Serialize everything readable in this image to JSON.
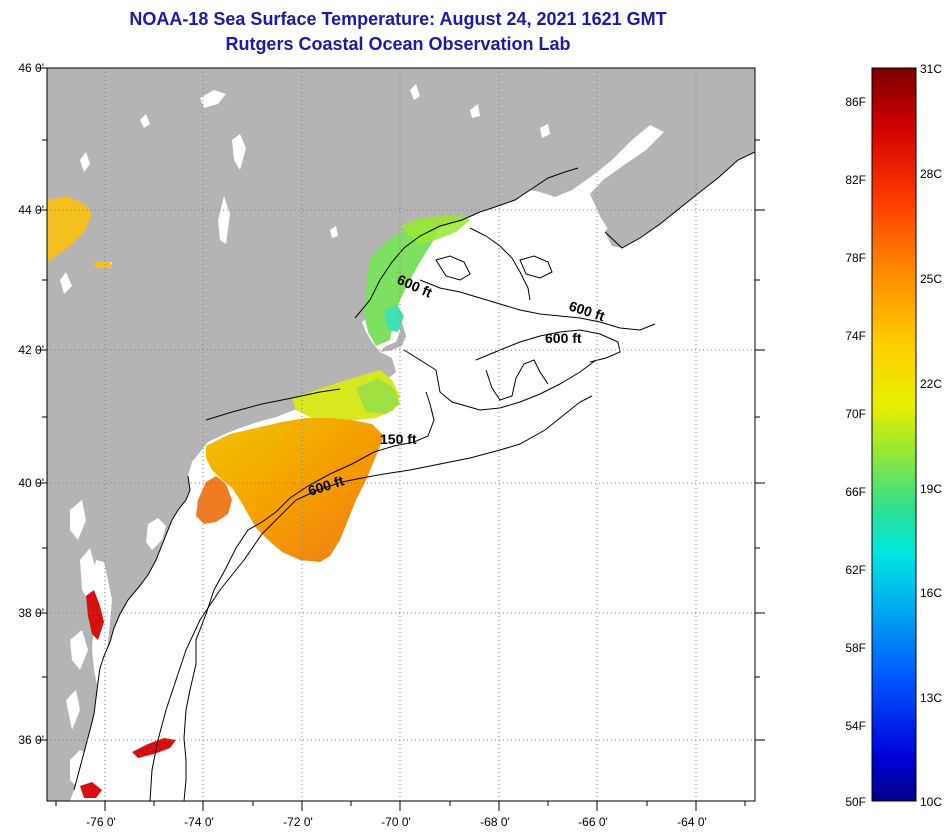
{
  "header": {
    "title": "NOAA-18 Sea Surface Temperature:  August 24, 2021 1621 GMT",
    "subtitle": "Rutgers Coastal Ocean Observation Lab"
  },
  "map": {
    "lat_labels": [
      "46 0'",
      "44 0'",
      "42 0'",
      "40 0'",
      "38 0'",
      "36 0'"
    ],
    "lon_labels": [
      "-76 0'",
      "-74 0'",
      "-72 0'",
      "-70 0'",
      "-68 0'",
      "-66 0'",
      "-64 0'"
    ],
    "contour_labels": [
      "600 ft",
      "600 ft",
      "600 ft",
      "150 ft",
      "600 ft"
    ],
    "colors": {
      "land": "#b4b4b4",
      "ocean": "#ffffff",
      "coast": "#000000",
      "title": "#1a1aa6"
    }
  },
  "colorbar": {
    "fahrenheit": [
      "86F",
      "82F",
      "78F",
      "74F",
      "70F",
      "66F",
      "62F",
      "58F",
      "54F",
      "50F"
    ],
    "celsius": [
      "31C",
      "28C",
      "25C",
      "22C",
      "19C",
      "16C",
      "13C",
      "10C"
    ]
  }
}
